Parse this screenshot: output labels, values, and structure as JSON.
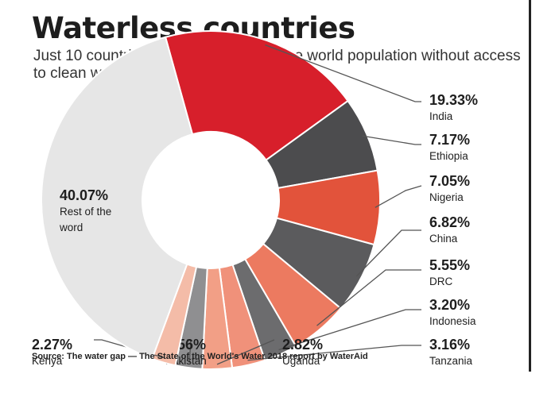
{
  "header": {
    "title": "Waterless countries",
    "subtitle": "Just 10 countries account for 60% of the world population without access to clean water"
  },
  "footer": {
    "source": "Source: The water gap — The State of the World's Water 2018 report by WaterAid"
  },
  "chart_data": {
    "type": "pie",
    "donut": true,
    "title": "Waterless countries",
    "unit": "%",
    "slices": [
      {
        "label": "India",
        "value": 19.33,
        "display": "19.33%",
        "color": "#d71f2b"
      },
      {
        "label": "Ethiopia",
        "value": 7.17,
        "display": "7.17%",
        "color": "#4c4c4e"
      },
      {
        "label": "Nigeria",
        "value": 7.05,
        "display": "7.05%",
        "color": "#e2533b"
      },
      {
        "label": "China",
        "value": 6.82,
        "display": "6.82%",
        "color": "#5b5b5d"
      },
      {
        "label": "DRC",
        "value": 5.55,
        "display": "5.55%",
        "color": "#ec7a60"
      },
      {
        "label": "Indonesia",
        "value": 3.2,
        "display": "3.20%",
        "color": "#6c6c6e"
      },
      {
        "label": "Tanzania",
        "value": 3.16,
        "display": "3.16%",
        "color": "#f0917a"
      },
      {
        "label": "Uganda",
        "value": 2.82,
        "display": "2.82%",
        "color": "#f29f86"
      },
      {
        "label": "Pakistan",
        "value": 2.56,
        "display": "2.56%",
        "color": "#8f8f91"
      },
      {
        "label": "Kenya",
        "value": 2.27,
        "display": "2.27%",
        "color": "#f4bca8"
      },
      {
        "label": "Rest of the word",
        "value": 40.07,
        "display": "40.07%",
        "color": "#e6e6e6"
      }
    ]
  }
}
